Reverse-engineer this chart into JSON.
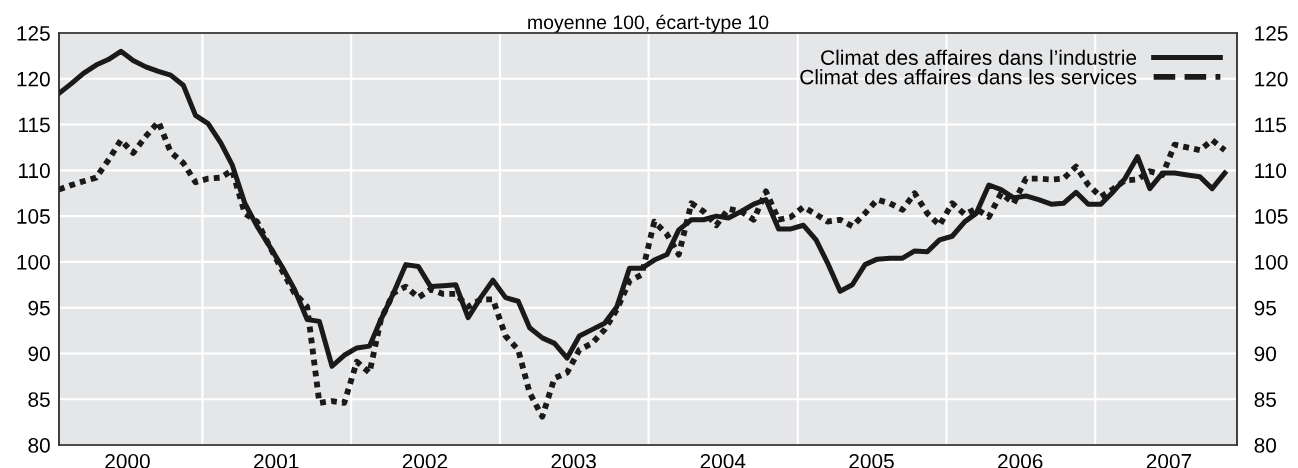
{
  "chart_data": {
    "type": "line",
    "title": "moyenne 100, écart-type 10",
    "x": [
      "2000-01-15",
      "2000-02-15",
      "2000-03-15",
      "2000-04-15",
      "2000-05-15",
      "2000-06-15",
      "2000-07-15",
      "2000-08-15",
      "2000-09-15",
      "2000-10-15",
      "2000-11-15",
      "2000-12-15",
      "2001-01-15",
      "2001-02-15",
      "2001-03-15",
      "2001-04-15",
      "2001-05-15",
      "2001-06-15",
      "2001-07-15",
      "2001-08-15",
      "2001-09-15",
      "2001-10-15",
      "2001-11-15",
      "2001-12-15",
      "2002-01-15",
      "2002-02-15",
      "2002-03-15",
      "2002-04-15",
      "2002-05-15",
      "2002-06-15",
      "2002-07-15",
      "2002-08-15",
      "2002-09-15",
      "2002-10-15",
      "2002-11-15",
      "2002-12-15",
      "2003-01-15",
      "2003-02-15",
      "2003-03-15",
      "2003-04-15",
      "2003-05-15",
      "2003-06-15",
      "2003-07-15",
      "2003-08-15",
      "2003-09-15",
      "2003-10-15",
      "2003-11-15",
      "2003-12-15",
      "2004-01-15",
      "2004-02-15",
      "2004-03-15",
      "2004-04-15",
      "2004-05-15",
      "2004-06-15",
      "2004-07-15",
      "2004-08-15",
      "2004-09-15",
      "2004-10-15",
      "2004-11-15",
      "2004-12-15",
      "2005-01-15",
      "2005-02-15",
      "2005-03-15",
      "2005-04-15",
      "2005-05-15",
      "2005-06-15",
      "2005-07-15",
      "2005-08-15",
      "2005-09-15",
      "2005-10-15",
      "2005-11-15",
      "2005-12-15",
      "2006-01-15",
      "2006-02-15",
      "2006-03-15",
      "2006-04-15",
      "2006-05-15",
      "2006-06-15",
      "2006-07-15",
      "2006-08-15",
      "2006-09-15",
      "2006-10-15",
      "2006-11-15",
      "2006-12-15",
      "2007-01-15",
      "2007-02-15",
      "2007-03-15",
      "2007-04-15",
      "2007-05-15",
      "2007-06-15",
      "2007-07-15",
      "2007-08-15",
      "2007-09-15",
      "2007-10-15",
      "2007-11-15"
    ],
    "series": [
      {
        "name": "Climat des affaires dans l’industrie",
        "color": "#1a1a1a",
        "line_style": "solid",
        "values": [
          118.4,
          119.5,
          120.6,
          121.5,
          122.1,
          123.0,
          122.0,
          121.3,
          120.8,
          120.4,
          119.3,
          116.0,
          115.1,
          113.0,
          110.6,
          106.4,
          103.9,
          101.7,
          99.5,
          97.0,
          93.7,
          93.5,
          88.6,
          89.8,
          90.6,
          90.8,
          93.7,
          96.6,
          99.7,
          99.5,
          97.3,
          97.4,
          97.5,
          93.9,
          96.1,
          98.0,
          96.1,
          95.7,
          92.8,
          91.7,
          91.1,
          89.5,
          91.9,
          92.6,
          93.3,
          95.1,
          99.3,
          99.3,
          100.2,
          100.8,
          103.5,
          104.6,
          104.6,
          105.0,
          104.8,
          105.5,
          106.3,
          106.8,
          103.6,
          103.6,
          104.0,
          102.4,
          99.9,
          96.8,
          97.5,
          99.7,
          100.3,
          100.4,
          100.4,
          101.2,
          101.1,
          102.4,
          102.8,
          104.4,
          105.3,
          108.4,
          107.9,
          107.0,
          107.2,
          106.8,
          106.3,
          106.4,
          107.6,
          106.3,
          106.3,
          107.7,
          109.1,
          111.5,
          108.0,
          109.7,
          109.7,
          109.5,
          109.3,
          108.0,
          109.7
        ]
      },
      {
        "name": "Climat des affaires dans les services",
        "color": "#1a1a1a",
        "line_style": "dotted",
        "values": [
          107.9,
          108.4,
          108.8,
          109.2,
          111.1,
          113.3,
          111.9,
          113.7,
          115.3,
          112.0,
          110.8,
          108.7,
          109.1,
          109.2,
          110.0,
          105.3,
          104.4,
          101.7,
          99.1,
          96.6,
          95.1,
          84.6,
          84.8,
          84.6,
          89.1,
          87.9,
          93.7,
          96.6,
          97.3,
          96.1,
          97.0,
          96.5,
          96.5,
          95.1,
          95.9,
          95.9,
          91.9,
          90.4,
          85.7,
          83.1,
          87.3,
          87.9,
          90.4,
          91.1,
          92.6,
          94.8,
          97.9,
          98.6,
          104.4,
          103.0,
          100.8,
          106.4,
          105.5,
          104.0,
          105.8,
          105.5,
          104.6,
          107.7,
          104.6,
          104.9,
          106.0,
          105.2,
          104.4,
          104.6,
          103.9,
          105.3,
          106.8,
          106.4,
          105.7,
          107.5,
          105.3,
          104.0,
          106.4,
          105.2,
          105.8,
          104.9,
          107.5,
          106.4,
          109.1,
          109.1,
          109.0,
          109.1,
          110.4,
          108.4,
          107.1,
          108.0,
          108.9,
          109.0,
          109.9,
          109.5,
          112.8,
          112.5,
          112.2,
          113.3,
          112.2
        ]
      }
    ],
    "xlim": [
      "2000-01-15",
      "2007-12-15"
    ],
    "xticks": [
      {
        "value": "2000-07-01",
        "label": "2000"
      },
      {
        "value": "2001-07-01",
        "label": "2001"
      },
      {
        "value": "2002-07-01",
        "label": "2002"
      },
      {
        "value": "2003-07-01",
        "label": "2003"
      },
      {
        "value": "2004-07-01",
        "label": "2004"
      },
      {
        "value": "2005-07-01",
        "label": "2005"
      },
      {
        "value": "2006-07-01",
        "label": "2006"
      },
      {
        "value": "2007-07-01",
        "label": "2007"
      },
      {
        "value": "2001-01-01",
        "label": null
      },
      {
        "value": "2002-01-01",
        "label": null
      },
      {
        "value": "2003-01-01",
        "label": null
      },
      {
        "value": "2004-01-01",
        "label": null
      },
      {
        "value": "2005-01-01",
        "label": null
      },
      {
        "value": "2006-01-01",
        "label": null
      },
      {
        "value": "2007-01-01",
        "label": null
      }
    ],
    "ylim": [
      80,
      125
    ],
    "yticks": [
      80,
      85,
      90,
      95,
      100,
      105,
      110,
      115,
      120,
      125
    ],
    "y2lim": [
      80,
      125
    ],
    "y2ticks": [
      80,
      85,
      90,
      95,
      100,
      105,
      110,
      115,
      120,
      125
    ],
    "grid": true,
    "legend": "top right",
    "marker": "none"
  }
}
